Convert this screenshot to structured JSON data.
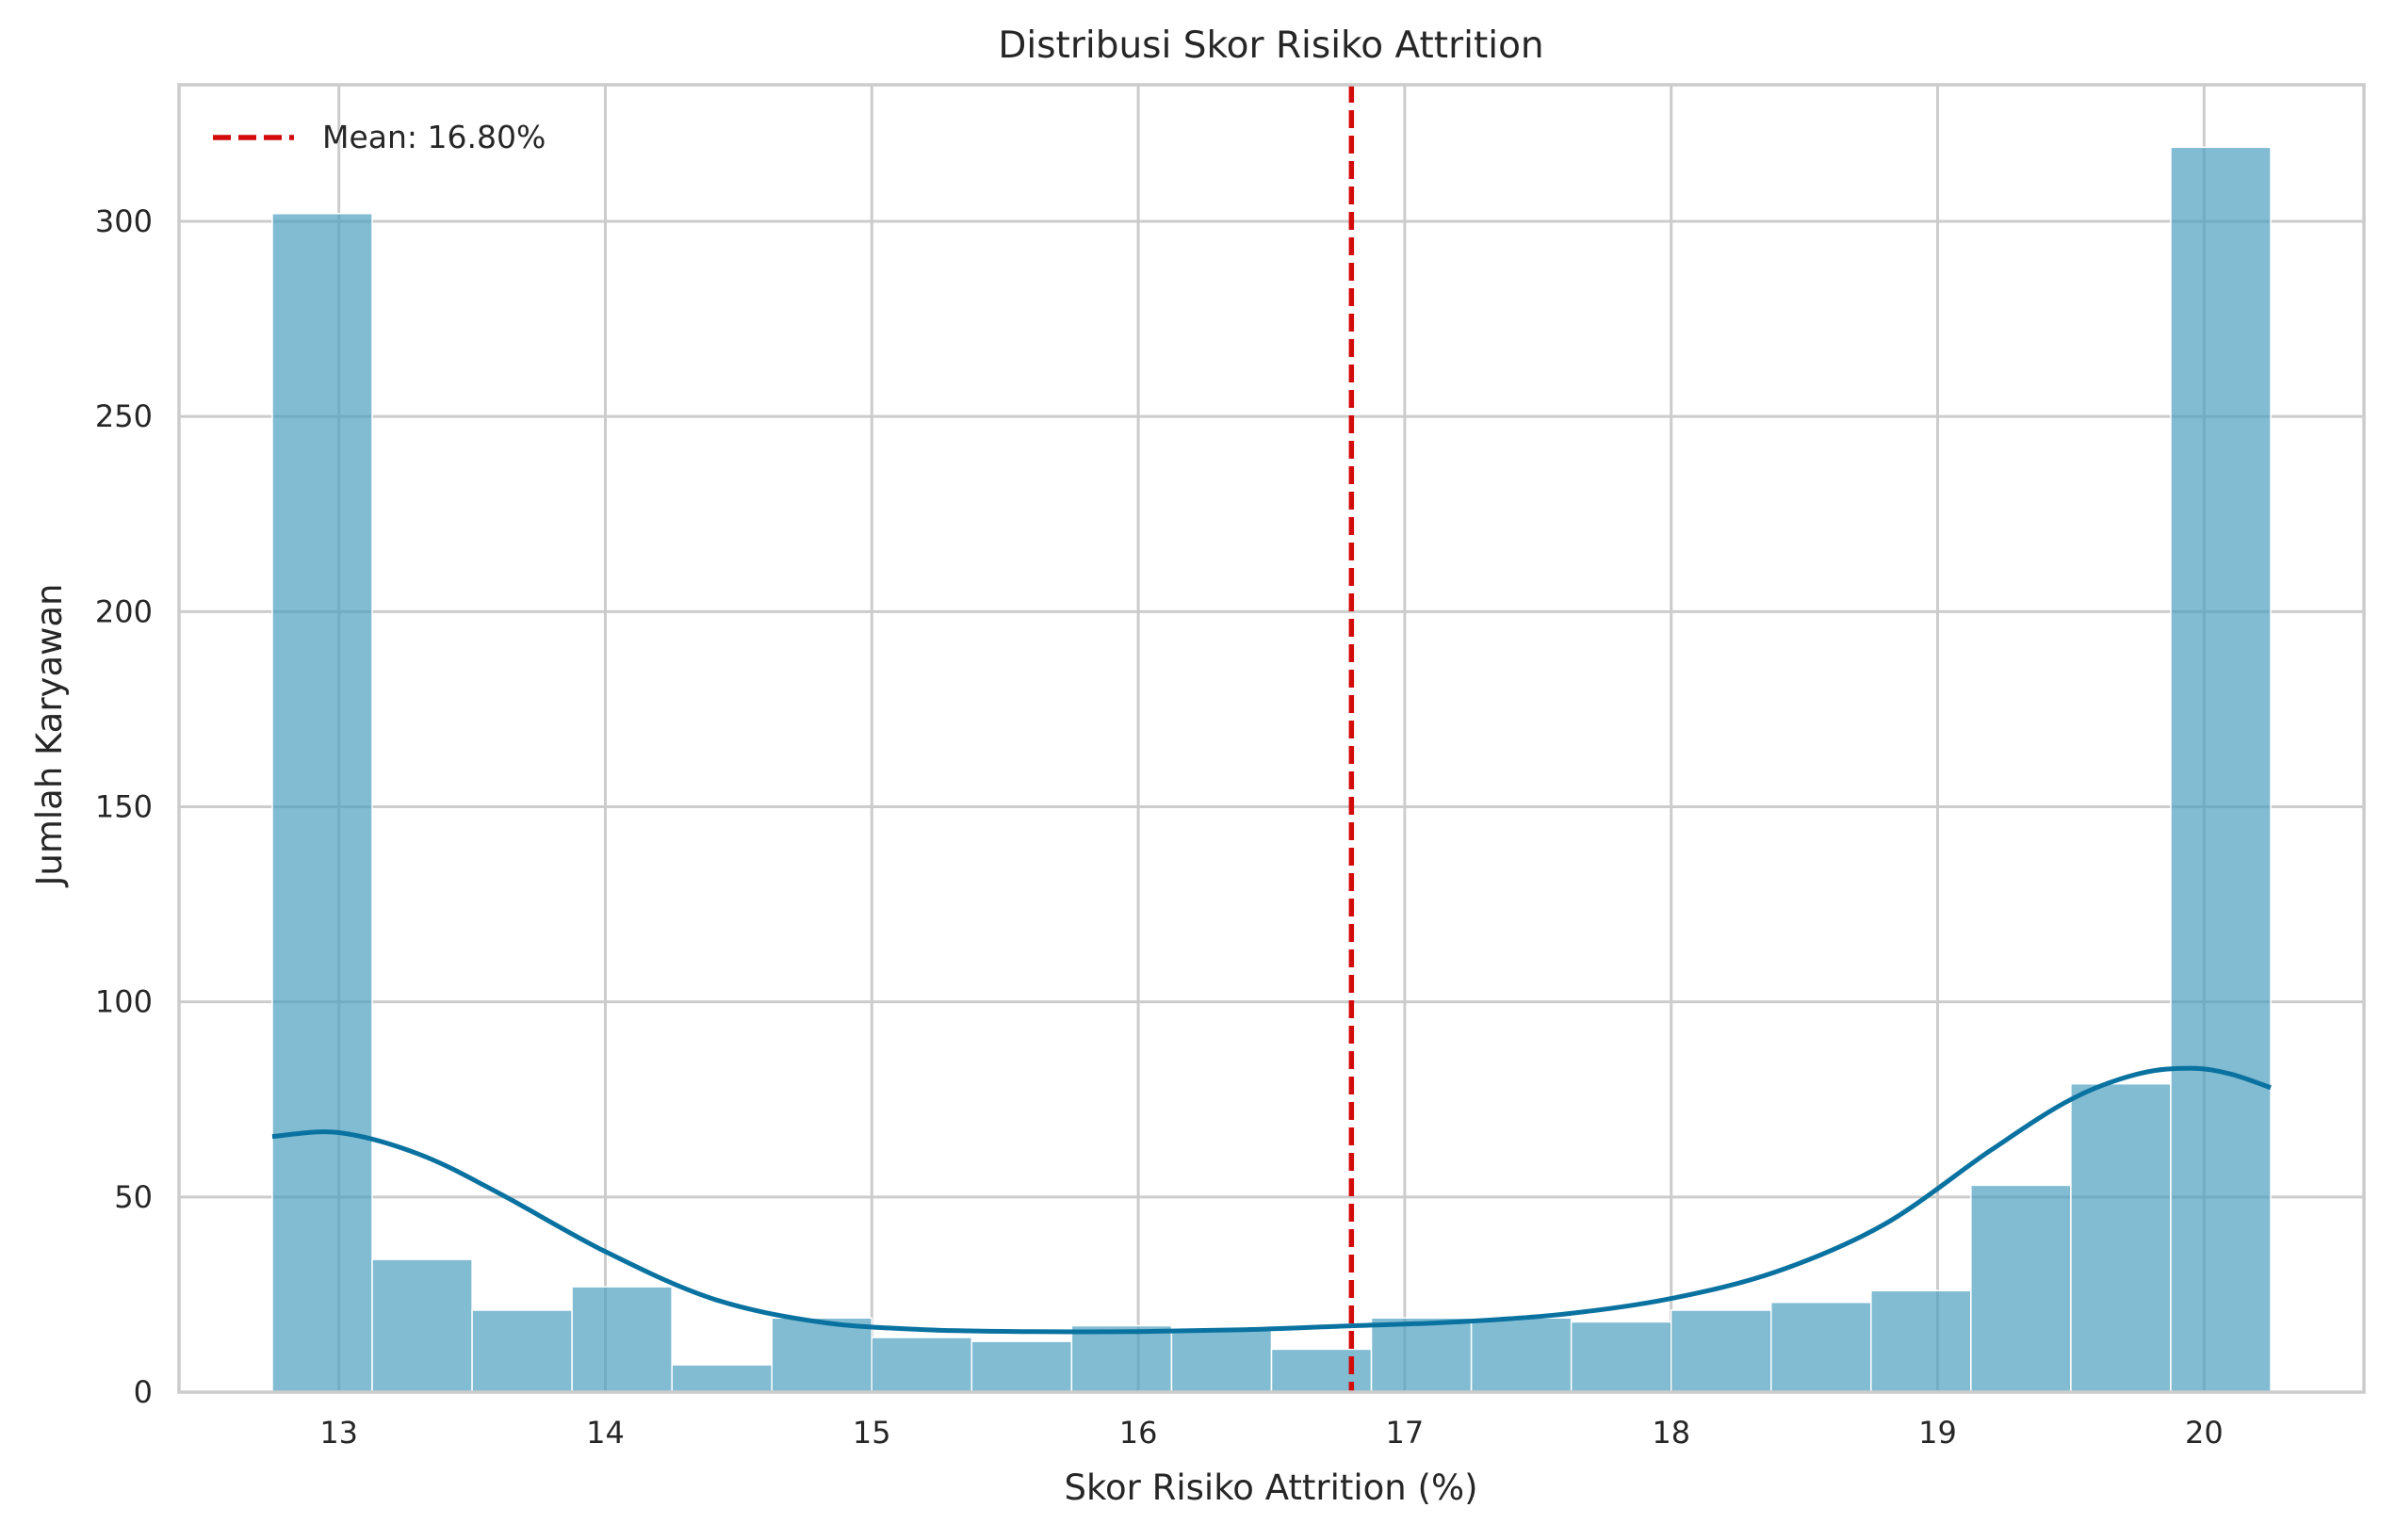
{
  "chart_data": {
    "type": "bar",
    "subtype": "histogram-with-kde",
    "title": "Distribusi Skor Risiko Attrition",
    "xlabel": "Skor Risiko Attrition (%)",
    "ylabel": "Jumlah Karyawan",
    "xlim": [
      12.4,
      20.6
    ],
    "ylim": [
      0,
      335
    ],
    "xticks": [
      13,
      14,
      15,
      16,
      17,
      18,
      19,
      20
    ],
    "yticks": [
      0,
      50,
      100,
      150,
      200,
      250,
      300
    ],
    "grid": true,
    "legend_position": "top-left",
    "bins": {
      "x_start": 12.75,
      "bin_width": 0.375,
      "counts": [
        302,
        34,
        21,
        27,
        7,
        19,
        14,
        13,
        17,
        16,
        11,
        19,
        19,
        18,
        21,
        23,
        26,
        53,
        79,
        319
      ]
    },
    "kde": {
      "x": [
        12.75,
        13.0,
        13.3,
        13.6,
        14.0,
        14.4,
        14.8,
        15.2,
        15.6,
        16.0,
        16.4,
        16.8,
        17.2,
        17.6,
        18.0,
        18.4,
        18.8,
        19.2,
        19.5,
        19.75,
        19.95,
        20.1,
        20.25
      ],
      "y": [
        65.5,
        66.5,
        61,
        51,
        36,
        24,
        18,
        16,
        15.5,
        15.5,
        16,
        17,
        18,
        20,
        24,
        31,
        43,
        62,
        75,
        81.5,
        83,
        81.5,
        78
      ]
    },
    "series": [
      {
        "name": "Mean: 16.80%",
        "kind": "vline",
        "x": 16.8,
        "color": "#d20a0a",
        "style": "dashed"
      }
    ],
    "colors": {
      "bar": "#4c9fc1",
      "kde": "#0a72a0",
      "grid": "#cccccc",
      "mean": "#d20a0a"
    }
  }
}
